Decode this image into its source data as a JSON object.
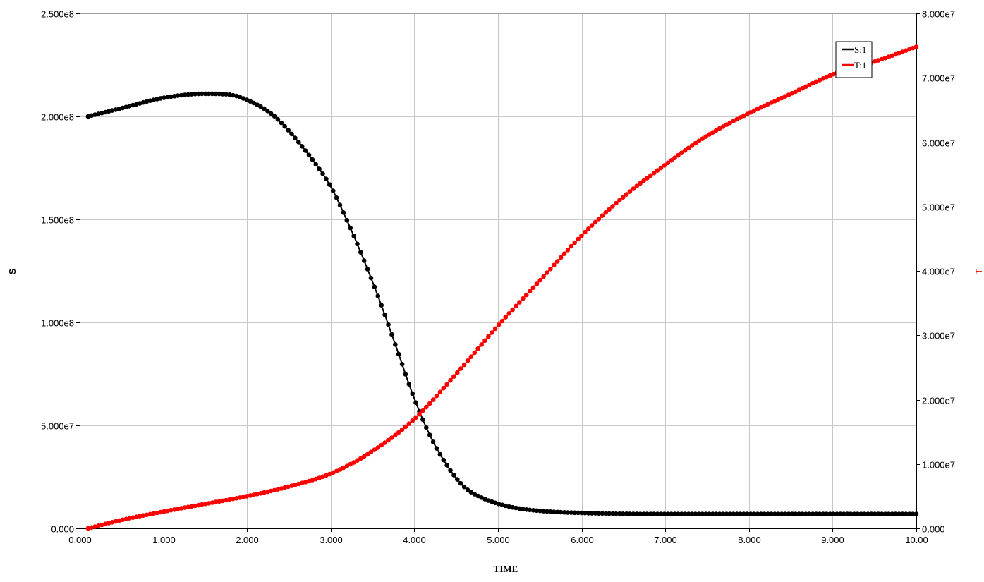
{
  "chart_data": {
    "type": "scatter",
    "xlabel": "TIME",
    "ylabel_left": "S",
    "ylabel_right": "T",
    "xlim": [
      0,
      10
    ],
    "ylim_left": [
      0,
      250000000
    ],
    "ylim_right": [
      0,
      80000000
    ],
    "grid": true,
    "legend_position": "top-right",
    "x_ticks": [
      "0.000",
      "1.000",
      "2.000",
      "3.000",
      "4.000",
      "5.000",
      "6.000",
      "7.000",
      "8.000",
      "9.000",
      "10.00"
    ],
    "y_ticks_left": [
      "0.000",
      "5.000e7",
      "1.000e8",
      "1.500e8",
      "2.000e8",
      "2.500e8"
    ],
    "y_ticks_right": [
      "0.000",
      "1.000e7",
      "2.000e7",
      "3.000e7",
      "4.000e7",
      "5.000e7",
      "6.000e7",
      "7.000e7",
      "8.000e7"
    ],
    "series": [
      {
        "name": "S:1",
        "axis": "left",
        "color": "#000000",
        "x": [
          0.1,
          0.5,
          1.0,
          1.5,
          1.8,
          2.0,
          2.3,
          2.5,
          2.8,
          3.0,
          3.2,
          3.4,
          3.6,
          3.8,
          4.0,
          4.2,
          4.4,
          4.6,
          4.8,
          5.0,
          5.2,
          5.5,
          6.0,
          7.0,
          8.0,
          9.0,
          10.0
        ],
        "values": [
          200000000,
          204000000,
          209000000,
          211000000,
          210500000,
          208000000,
          201000000,
          193000000,
          178000000,
          166000000,
          149000000,
          130000000,
          109000000,
          86000000,
          63000000,
          44000000,
          30000000,
          20000000,
          15000000,
          12000000,
          10000000,
          8500000,
          7500000,
          7000000,
          7000000,
          7000000,
          7000000
        ]
      },
      {
        "name": "T:1",
        "axis": "right",
        "color": "#ff0000",
        "x": [
          0.1,
          0.5,
          1.0,
          1.5,
          2.0,
          2.5,
          3.0,
          3.5,
          4.0,
          4.5,
          5.0,
          5.5,
          6.0,
          6.5,
          7.0,
          7.5,
          8.0,
          8.5,
          9.0,
          9.5,
          10.0
        ],
        "values": [
          0,
          1300000,
          2600000,
          3800000,
          5000000,
          6500000,
          8500000,
          12000000,
          17000000,
          24000000,
          31500000,
          38500000,
          45500000,
          51500000,
          56500000,
          61000000,
          64500000,
          67500000,
          70500000,
          72500000,
          74800000
        ]
      }
    ]
  }
}
